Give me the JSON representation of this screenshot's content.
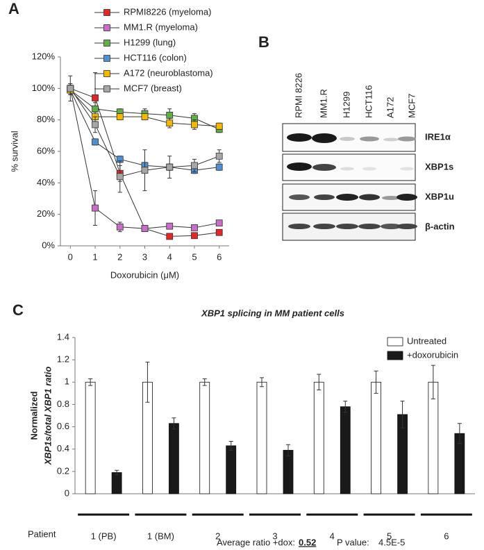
{
  "panels": {
    "a": "A",
    "b": "B",
    "c": "C"
  },
  "blot": {
    "lanes": [
      "RPMI 8226",
      "MM1.R",
      "H1299",
      "HCT116",
      "A172",
      "MCF7"
    ],
    "bands": [
      "IRE1α",
      "XBP1s",
      "XBP1u",
      "β-actin"
    ]
  },
  "chart_data": [
    {
      "type": "line",
      "x_label": "Doxorubicin (μM)",
      "y_label": "% survival",
      "x": [
        0,
        1,
        2,
        3,
        4,
        5,
        6
      ],
      "xlim": [
        -0.4,
        6.4
      ],
      "xticks": [
        0,
        1,
        2,
        3,
        4,
        5,
        6
      ],
      "ylim": [
        0,
        120
      ],
      "yticks": [
        {
          "value": 0,
          "label": "0%"
        },
        {
          "value": 20,
          "label": "20%"
        },
        {
          "value": 40,
          "label": "40%"
        },
        {
          "value": 60,
          "label": "60%"
        },
        {
          "value": 80,
          "label": "80%"
        },
        {
          "value": 100,
          "label": "100%"
        },
        {
          "value": 120,
          "label": "120%"
        }
      ],
      "series": [
        {
          "name": "RPMI8226 (myeloma)",
          "color": "#e32626",
          "values": [
            100,
            94,
            46,
            11,
            6,
            6.5,
            8.5
          ],
          "errors": [
            3,
            16,
            5,
            1,
            1,
            1,
            1
          ]
        },
        {
          "name": "MM1.R (myeloma)",
          "color": "#c86dc8",
          "values": [
            100,
            24,
            12,
            11,
            12.5,
            11.5,
            14.5
          ],
          "errors": [
            3,
            11,
            3,
            1,
            1,
            1,
            1
          ]
        },
        {
          "name": "H1299 (lung)",
          "color": "#5fae46",
          "values": [
            99,
            87,
            85,
            84,
            83,
            81,
            74
          ],
          "errors": [
            3,
            4,
            2,
            3,
            4,
            3,
            2
          ]
        },
        {
          "name": "HCT116 (colon)",
          "color": "#4f8fd4",
          "values": [
            99,
            66,
            55,
            51,
            50,
            48,
            50
          ],
          "errors": [
            3,
            2,
            2,
            2,
            2,
            2,
            2
          ]
        },
        {
          "name": "A172 (neuroblastoma)",
          "color": "#f5b800",
          "values": [
            99,
            82,
            82,
            82,
            78,
            77,
            76
          ],
          "errors": [
            3,
            3,
            2,
            2,
            3,
            3,
            2
          ]
        },
        {
          "name": "MCF7 (breast)",
          "color": "#a6a6a6",
          "values": [
            100,
            77,
            44,
            48,
            50,
            51,
            57
          ],
          "errors": [
            8,
            5,
            10,
            13,
            7,
            4,
            4
          ]
        }
      ]
    },
    {
      "type": "bar",
      "title": "XBP1 splicing in MM patient cells",
      "y_label": [
        "Normalized",
        "XBP1s/total XBP1 ratio"
      ],
      "x_label": "Patient",
      "categories": [
        "1 (PB)",
        "1 (BM)",
        "2",
        "3",
        "4",
        "5",
        "6"
      ],
      "ylim": [
        0,
        1.4
      ],
      "yticks": [
        0,
        0.2,
        0.4,
        0.6,
        0.8,
        1,
        1.2,
        1.4
      ],
      "series": [
        {
          "name": "Untreated",
          "color": "#ffffff",
          "values": [
            1,
            1,
            1,
            1,
            1,
            1,
            1
          ],
          "errors": [
            0.03,
            0.18,
            0.03,
            0.04,
            0.07,
            0.1,
            0.15
          ]
        },
        {
          "name": "+doxorubicin",
          "color": "#1a1a1a",
          "values": [
            0.19,
            0.63,
            0.43,
            0.39,
            0.78,
            0.71,
            0.54
          ],
          "errors": [
            0.02,
            0.05,
            0.04,
            0.05,
            0.05,
            0.12,
            0.09
          ]
        }
      ],
      "annotations": {
        "average_label": "Average ratio +dox:",
        "average_value": 0.52,
        "p_label": "P value:",
        "p_value": "4.5E-5"
      }
    }
  ]
}
